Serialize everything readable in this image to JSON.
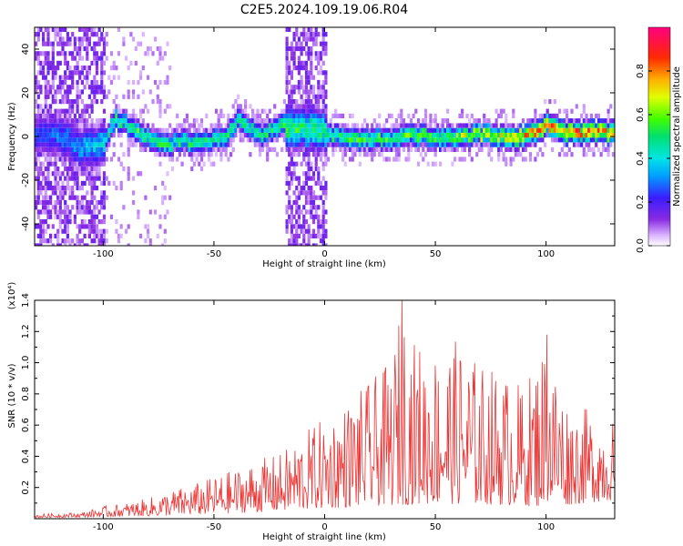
{
  "title": "C2E5.2024.109.19.06.R04",
  "chart_data": [
    {
      "type": "heatmap",
      "xlabel": "Height of straight line (km)",
      "ylabel": "Frequency (Hz)",
      "xlim": [
        -131,
        131
      ],
      "ylim": [
        -50,
        50
      ],
      "xticks": [
        -100,
        -50,
        0,
        50,
        100
      ],
      "yticks": [
        -40,
        -20,
        0,
        20,
        40
      ],
      "colorbar": {
        "label": "Normalized spectral amplitude",
        "range": [
          0,
          1
        ],
        "ticks": [
          "0.0",
          "0.2",
          "0.4",
          "0.6",
          "0.8"
        ],
        "colormap": "rainbow (purple-blue-cyan-green-yellow-orange-red-magenta)"
      },
      "ridge": {
        "description": "dominant frequency ridge near 0 Hz vs height",
        "x": [
          -131,
          -120,
          -110,
          -100,
          -95,
          -85,
          -75,
          -65,
          -55,
          -45,
          -40,
          -30,
          -20,
          0,
          10,
          20,
          30,
          40,
          50,
          60,
          70,
          80,
          90,
          100,
          110,
          120,
          131
        ],
        "y": [
          0,
          0,
          -5,
          -3,
          8,
          3,
          -4,
          -2,
          -3,
          0,
          8,
          0,
          5,
          2,
          -2,
          -1,
          -1,
          1,
          -1,
          0,
          1,
          0,
          0,
          5,
          1,
          2,
          1
        ],
        "peak_amplitude": [
          0.25,
          0.3,
          0.35,
          0.4,
          0.5,
          0.55,
          0.55,
          0.5,
          0.5,
          0.5,
          0.5,
          0.5,
          0.55,
          0.5,
          0.55,
          0.55,
          0.55,
          0.6,
          0.6,
          0.65,
          0.65,
          0.75,
          0.8,
          0.85,
          0.85,
          0.85,
          0.8
        ]
      },
      "noise_regions": [
        {
          "x_range": [
            -131,
            -100
          ],
          "note": "broadband noise"
        },
        {
          "x_range": [
            -18,
            0
          ],
          "note": "broadband noise"
        }
      ],
      "grid": false
    },
    {
      "type": "line",
      "xlabel": "Height of straight line (km)",
      "ylabel": "SNR (10 * v/v)",
      "y_multiplier": "(x10⁴)",
      "xlim": [
        -131,
        131
      ],
      "ylim": [
        0,
        1.4
      ],
      "xticks": [
        -100,
        -50,
        0,
        50,
        100
      ],
      "yticks": [
        "0.2",
        "0.4",
        "0.6",
        "0.8",
        "1.0",
        "1.2",
        "1.4"
      ],
      "color": "#ee3333",
      "envelope": {
        "x": [
          -131,
          -110,
          -100,
          -90,
          -80,
          -70,
          -60,
          -50,
          -40,
          -30,
          -20,
          -10,
          0,
          10,
          20,
          30,
          35,
          40,
          50,
          60,
          70,
          80,
          90,
          100,
          110,
          120,
          131
        ],
        "y": [
          0.03,
          0.04,
          0.08,
          0.1,
          0.13,
          0.18,
          0.22,
          0.27,
          0.32,
          0.38,
          0.42,
          0.55,
          0.65,
          0.75,
          0.88,
          1.0,
          1.4,
          1.15,
          1.1,
          1.15,
          1.0,
          0.95,
          0.85,
          1.18,
          0.75,
          0.7,
          0.65
        ]
      },
      "baseline": {
        "x": [
          -131,
          -100,
          -75,
          -50,
          -25,
          0,
          25,
          50,
          75,
          100,
          131
        ],
        "y": [
          0.02,
          0.04,
          0.06,
          0.1,
          0.15,
          0.22,
          0.28,
          0.32,
          0.3,
          0.25,
          0.4
        ]
      },
      "grid": false
    }
  ]
}
